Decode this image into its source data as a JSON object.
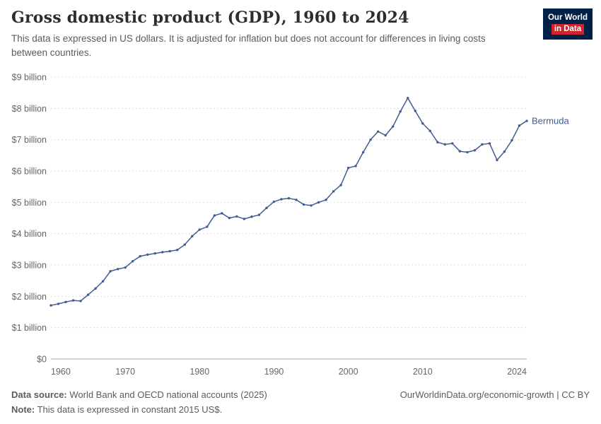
{
  "header": {
    "title": "Gross domestic product (GDP), 1960 to 2024",
    "subtitle": "This data is expressed in US dollars. It is adjusted for inflation but does not account for differences in living costs between countries."
  },
  "logo": {
    "line1": "Our World",
    "line2": "in Data",
    "bg_color": "#002147",
    "accent_color": "#cf242b"
  },
  "colors": {
    "series_blue": "#415c93",
    "grid": "#dcdcdc",
    "axis_line": "#a5a5a5",
    "tick_text": "#666666"
  },
  "chart_data": {
    "type": "line",
    "title": "Gross domestic product (GDP), 1960 to 2024",
    "xlabel": "",
    "ylabel": "",
    "unit": "constant 2015 US$, billions",
    "x_range": [
      1960,
      2024
    ],
    "x_ticks": [
      1960,
      1970,
      1980,
      1990,
      2000,
      2010,
      2024
    ],
    "ylim": [
      0,
      9
    ],
    "y_tick_labels": [
      "$0",
      "$1 billion",
      "$2 billion",
      "$3 billion",
      "$4 billion",
      "$5 billion",
      "$6 billion",
      "$7 billion",
      "$8 billion",
      "$9 billion"
    ],
    "grid": "horizontal-dashed",
    "legend_position": "end-of-line-label",
    "series": [
      {
        "name": "Bermuda",
        "color": "#415c93",
        "start_year": 1960,
        "values": [
          1.71,
          1.76,
          1.82,
          1.87,
          1.85,
          2.05,
          2.25,
          2.48,
          2.8,
          2.87,
          2.92,
          3.12,
          3.28,
          3.33,
          3.37,
          3.41,
          3.44,
          3.48,
          3.65,
          3.92,
          4.13,
          4.22,
          4.58,
          4.65,
          4.5,
          4.55,
          4.47,
          4.54,
          4.6,
          4.82,
          5.02,
          5.1,
          5.13,
          5.08,
          4.93,
          4.9,
          5.0,
          5.08,
          5.35,
          5.55,
          6.1,
          6.16,
          6.6,
          7.0,
          7.26,
          7.14,
          7.42,
          7.9,
          8.33,
          7.92,
          7.52,
          7.28,
          6.92,
          6.85,
          6.88,
          6.63,
          6.6,
          6.66,
          6.85,
          6.88,
          6.35,
          6.62,
          6.98,
          7.45,
          7.6
        ]
      }
    ]
  },
  "footer": {
    "source_label": "Data source:",
    "source_text": " World Bank and OECD national accounts (2025)",
    "note_label": "Note:",
    "note_text": " This data is expressed in constant 2015 US$.",
    "link": "OurWorldinData.org/economic-growth | CC BY"
  }
}
